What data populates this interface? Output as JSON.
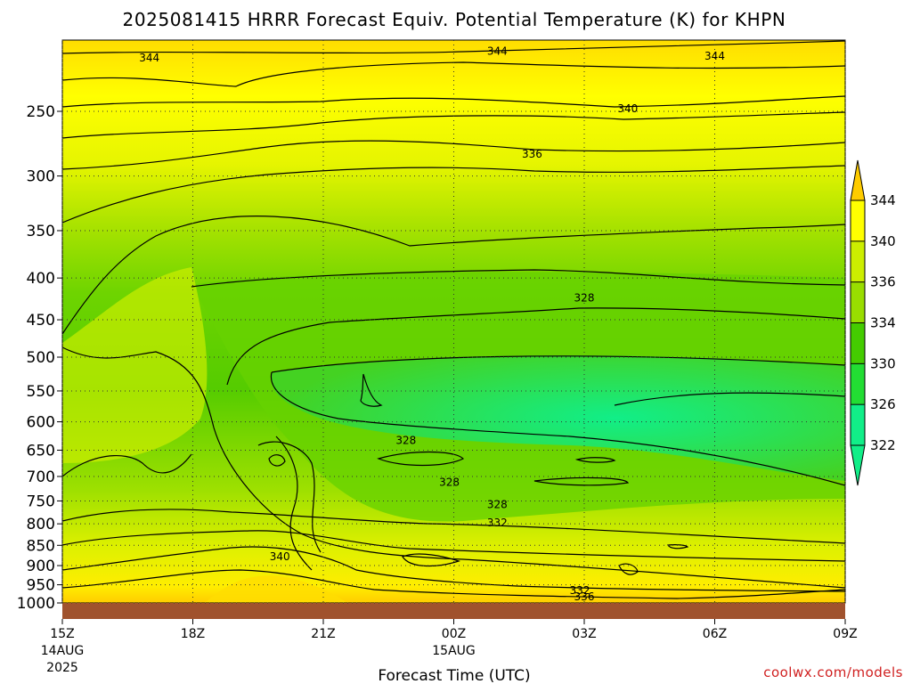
{
  "chart_data": {
    "type": "heatmap",
    "title": "2025081415 HRRR Forecast Equiv. Potential Temperature (K) for KHPN",
    "xlabel": "Forecast Time (UTC)",
    "ylabel": "",
    "x_ticks": [
      {
        "hour": 0,
        "label": "15Z",
        "date": "14AUG",
        "year": "2025"
      },
      {
        "hour": 3,
        "label": "18Z",
        "date": "",
        "year": ""
      },
      {
        "hour": 6,
        "label": "21Z",
        "date": "",
        "year": ""
      },
      {
        "hour": 9,
        "label": "00Z",
        "date": "15AUG",
        "year": ""
      },
      {
        "hour": 12,
        "label": "03Z",
        "date": "",
        "year": ""
      },
      {
        "hour": 15,
        "label": "06Z",
        "date": "",
        "year": ""
      },
      {
        "hour": 18,
        "label": "09Z",
        "date": "",
        "year": ""
      }
    ],
    "xlim": [
      0,
      18
    ],
    "y_ticks": [
      "250",
      "300",
      "350",
      "400",
      "450",
      "500",
      "550",
      "600",
      "650",
      "700",
      "750",
      "800",
      "850",
      "900",
      "950",
      "1000"
    ],
    "ylim": [
      1000,
      200
    ],
    "y_scale": "log-pressure",
    "grid": "dotted",
    "colorbar": {
      "labels": [
        "344",
        "340",
        "336",
        "334",
        "330",
        "326",
        "322"
      ],
      "colors": [
        "#ffcc00",
        "#ffff00",
        "#ccee00",
        "#99dd00",
        "#44cc00",
        "#22dd33",
        "#11ee88"
      ]
    },
    "contour_labels": [
      {
        "text": "344",
        "hour": 2.0,
        "p": 215
      },
      {
        "text": "344",
        "hour": 10.0,
        "p": 211
      },
      {
        "text": "344",
        "hour": 15.0,
        "p": 214
      },
      {
        "text": "340",
        "hour": 13.0,
        "p": 248
      },
      {
        "text": "336",
        "hour": 10.8,
        "p": 282
      },
      {
        "text": "328",
        "hour": 12.0,
        "p": 423
      },
      {
        "text": "328",
        "hour": 7.9,
        "p": 632
      },
      {
        "text": "328",
        "hour": 8.9,
        "p": 712
      },
      {
        "text": "328",
        "hour": 10.0,
        "p": 758
      },
      {
        "text": "332",
        "hour": 10.0,
        "p": 798
      },
      {
        "text": "340",
        "hour": 5.0,
        "p": 878
      },
      {
        "text": "332",
        "hour": 11.9,
        "p": 965
      },
      {
        "text": "336",
        "hour": 12.0,
        "p": 982
      }
    ],
    "terrain_below_p": 1000,
    "terrain_color": "#a0522d"
  },
  "watermark": "coolwx.com/models"
}
